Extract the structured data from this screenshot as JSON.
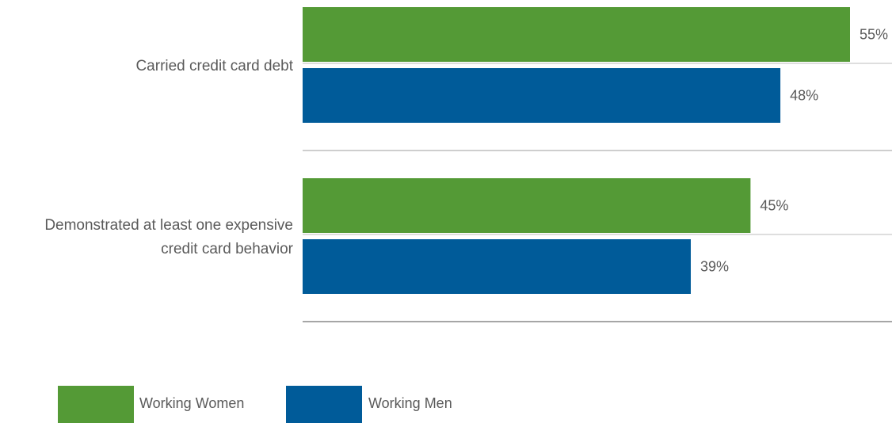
{
  "chart_data": {
    "type": "bar",
    "orientation": "horizontal",
    "categories": [
      [
        "Carried credit card debt"
      ],
      [
        "Demonstrated at least one expensive",
        "credit card behavior"
      ]
    ],
    "series": [
      {
        "name": "Working Women",
        "color": "#549a36",
        "values": [
          55,
          45
        ],
        "labels": [
          "55%",
          "45%"
        ]
      },
      {
        "name": "Working Men",
        "color": "#005b99",
        "values": [
          48,
          39
        ],
        "labels": [
          "48%",
          "39%"
        ]
      }
    ],
    "xlim": [
      0,
      60
    ],
    "grid": false,
    "legend_position": "bottom-left",
    "separator_color": "#bdbdbd",
    "baseline_color": "#a6a6a6"
  }
}
